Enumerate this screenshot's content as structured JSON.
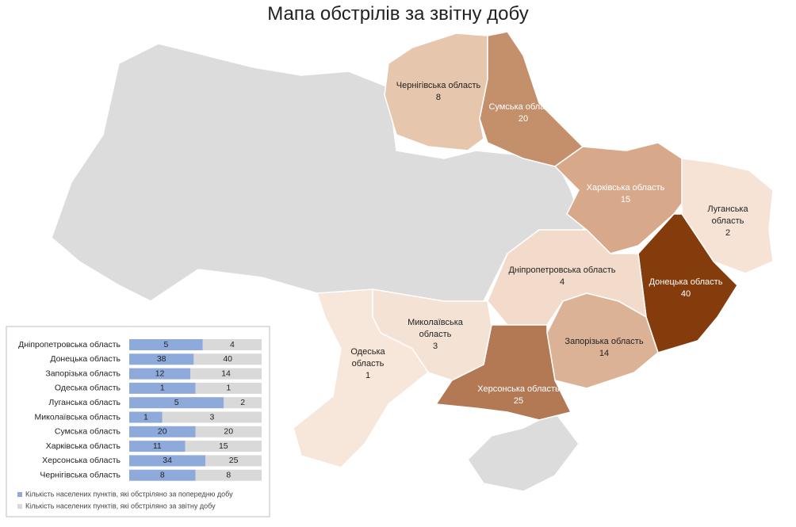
{
  "title": "Мапа обстрілів за звітну добу",
  "regions": [
    {
      "name": "Чернігівська область",
      "value": 8,
      "color": "#e6c7ae"
    },
    {
      "name": "Сумська область",
      "value": 20,
      "color": "#c4906b"
    },
    {
      "name": "Харківська область",
      "value": 15,
      "color": "#d7a98a"
    },
    {
      "name": "Луганська область",
      "value": 2,
      "color": "#f7e3d6"
    },
    {
      "name": "Донецька область",
      "value": 40,
      "color": "#843c0c"
    },
    {
      "name": "Дніпропетровська область",
      "value": 4,
      "color": "#f2dbcb"
    },
    {
      "name": "Запорізька область",
      "value": 14,
      "color": "#dcb296"
    },
    {
      "name": "Херсонська область",
      "value": 25,
      "color": "#b37955"
    },
    {
      "name": "Миколаївська область",
      "value": 3,
      "color": "#f4e2d5"
    },
    {
      "name": "Одеська область",
      "value": 1,
      "color": "#f7e6da"
    }
  ],
  "chart_data": {
    "type": "bar",
    "orientation": "horizontal",
    "stacking": "percent",
    "categories": [
      "Дніпропетровська область",
      "Донецька область",
      "Запорізька область",
      "Одеська область",
      "Луганська область",
      "Миколаївська область",
      "Сумська область",
      "Харківська область",
      "Херсонська область",
      "Чернігівська область"
    ],
    "series": [
      {
        "name": "Кількість населених пунктів, які обстріляно за попередню добу",
        "color": "#8eaadb",
        "values": [
          5,
          38,
          12,
          1,
          5,
          1,
          20,
          11,
          34,
          8
        ]
      },
      {
        "name": "Кількість населених пунктів, які обстріляно за звітну добу",
        "color": "#d9d9d9",
        "values": [
          4,
          40,
          14,
          1,
          2,
          3,
          20,
          15,
          25,
          8
        ]
      }
    ]
  }
}
